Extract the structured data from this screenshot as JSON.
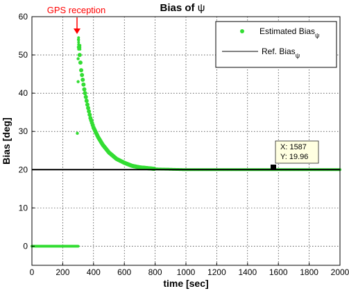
{
  "chart_data": {
    "type": "scatter",
    "title_prefix": "Bias of ",
    "title_symbol": "ψ",
    "xlabel": "time [sec]",
    "ylabel": "Bias [deg]",
    "xlim": [
      0,
      2000
    ],
    "ylim": [
      -5,
      60
    ],
    "xticks": [
      0,
      200,
      400,
      600,
      800,
      1000,
      1200,
      1400,
      1600,
      1800,
      2000
    ],
    "yticks": [
      0,
      10,
      20,
      30,
      40,
      50,
      60
    ],
    "grid": true,
    "legend_position": "top-right",
    "series": [
      {
        "legend_main": "Estimated Bias",
        "legend_sub": "ψ",
        "style": "markers",
        "color": "#33dd33",
        "points": [
          [
            0,
            0
          ],
          [
            100,
            0
          ],
          [
            200,
            0
          ],
          [
            300,
            0
          ],
          [
            295,
            29.5
          ],
          [
            300,
            43
          ],
          [
            300,
            49
          ],
          [
            302,
            54
          ],
          [
            305,
            52
          ],
          [
            320,
            46
          ],
          [
            340,
            41
          ],
          [
            360,
            37
          ],
          [
            380,
            33.5
          ],
          [
            400,
            31
          ],
          [
            430,
            28.5
          ],
          [
            460,
            26.5
          ],
          [
            500,
            24.5
          ],
          [
            550,
            22.8
          ],
          [
            600,
            21.8
          ],
          [
            650,
            21.0
          ],
          [
            700,
            20.6
          ],
          [
            750,
            20.4
          ],
          [
            800,
            20.2
          ],
          [
            1000,
            20.0
          ],
          [
            1200,
            20.0
          ],
          [
            1400,
            20.0
          ],
          [
            1600,
            20.0
          ],
          [
            1800,
            20.0
          ],
          [
            2000,
            20.0
          ]
        ]
      },
      {
        "legend_main": "Ref. Bias",
        "legend_sub": "ψ",
        "style": "line",
        "color": "#000000",
        "x": [
          0,
          2000
        ],
        "y": [
          20,
          20
        ]
      }
    ],
    "annotation": {
      "text": "GPS reception",
      "color": "#ff0000",
      "x": 300,
      "y": 54
    },
    "datatip": {
      "x_label": "X: 1587",
      "y_label": "Y: 19.96",
      "x": 1587,
      "y": 19.96
    }
  }
}
